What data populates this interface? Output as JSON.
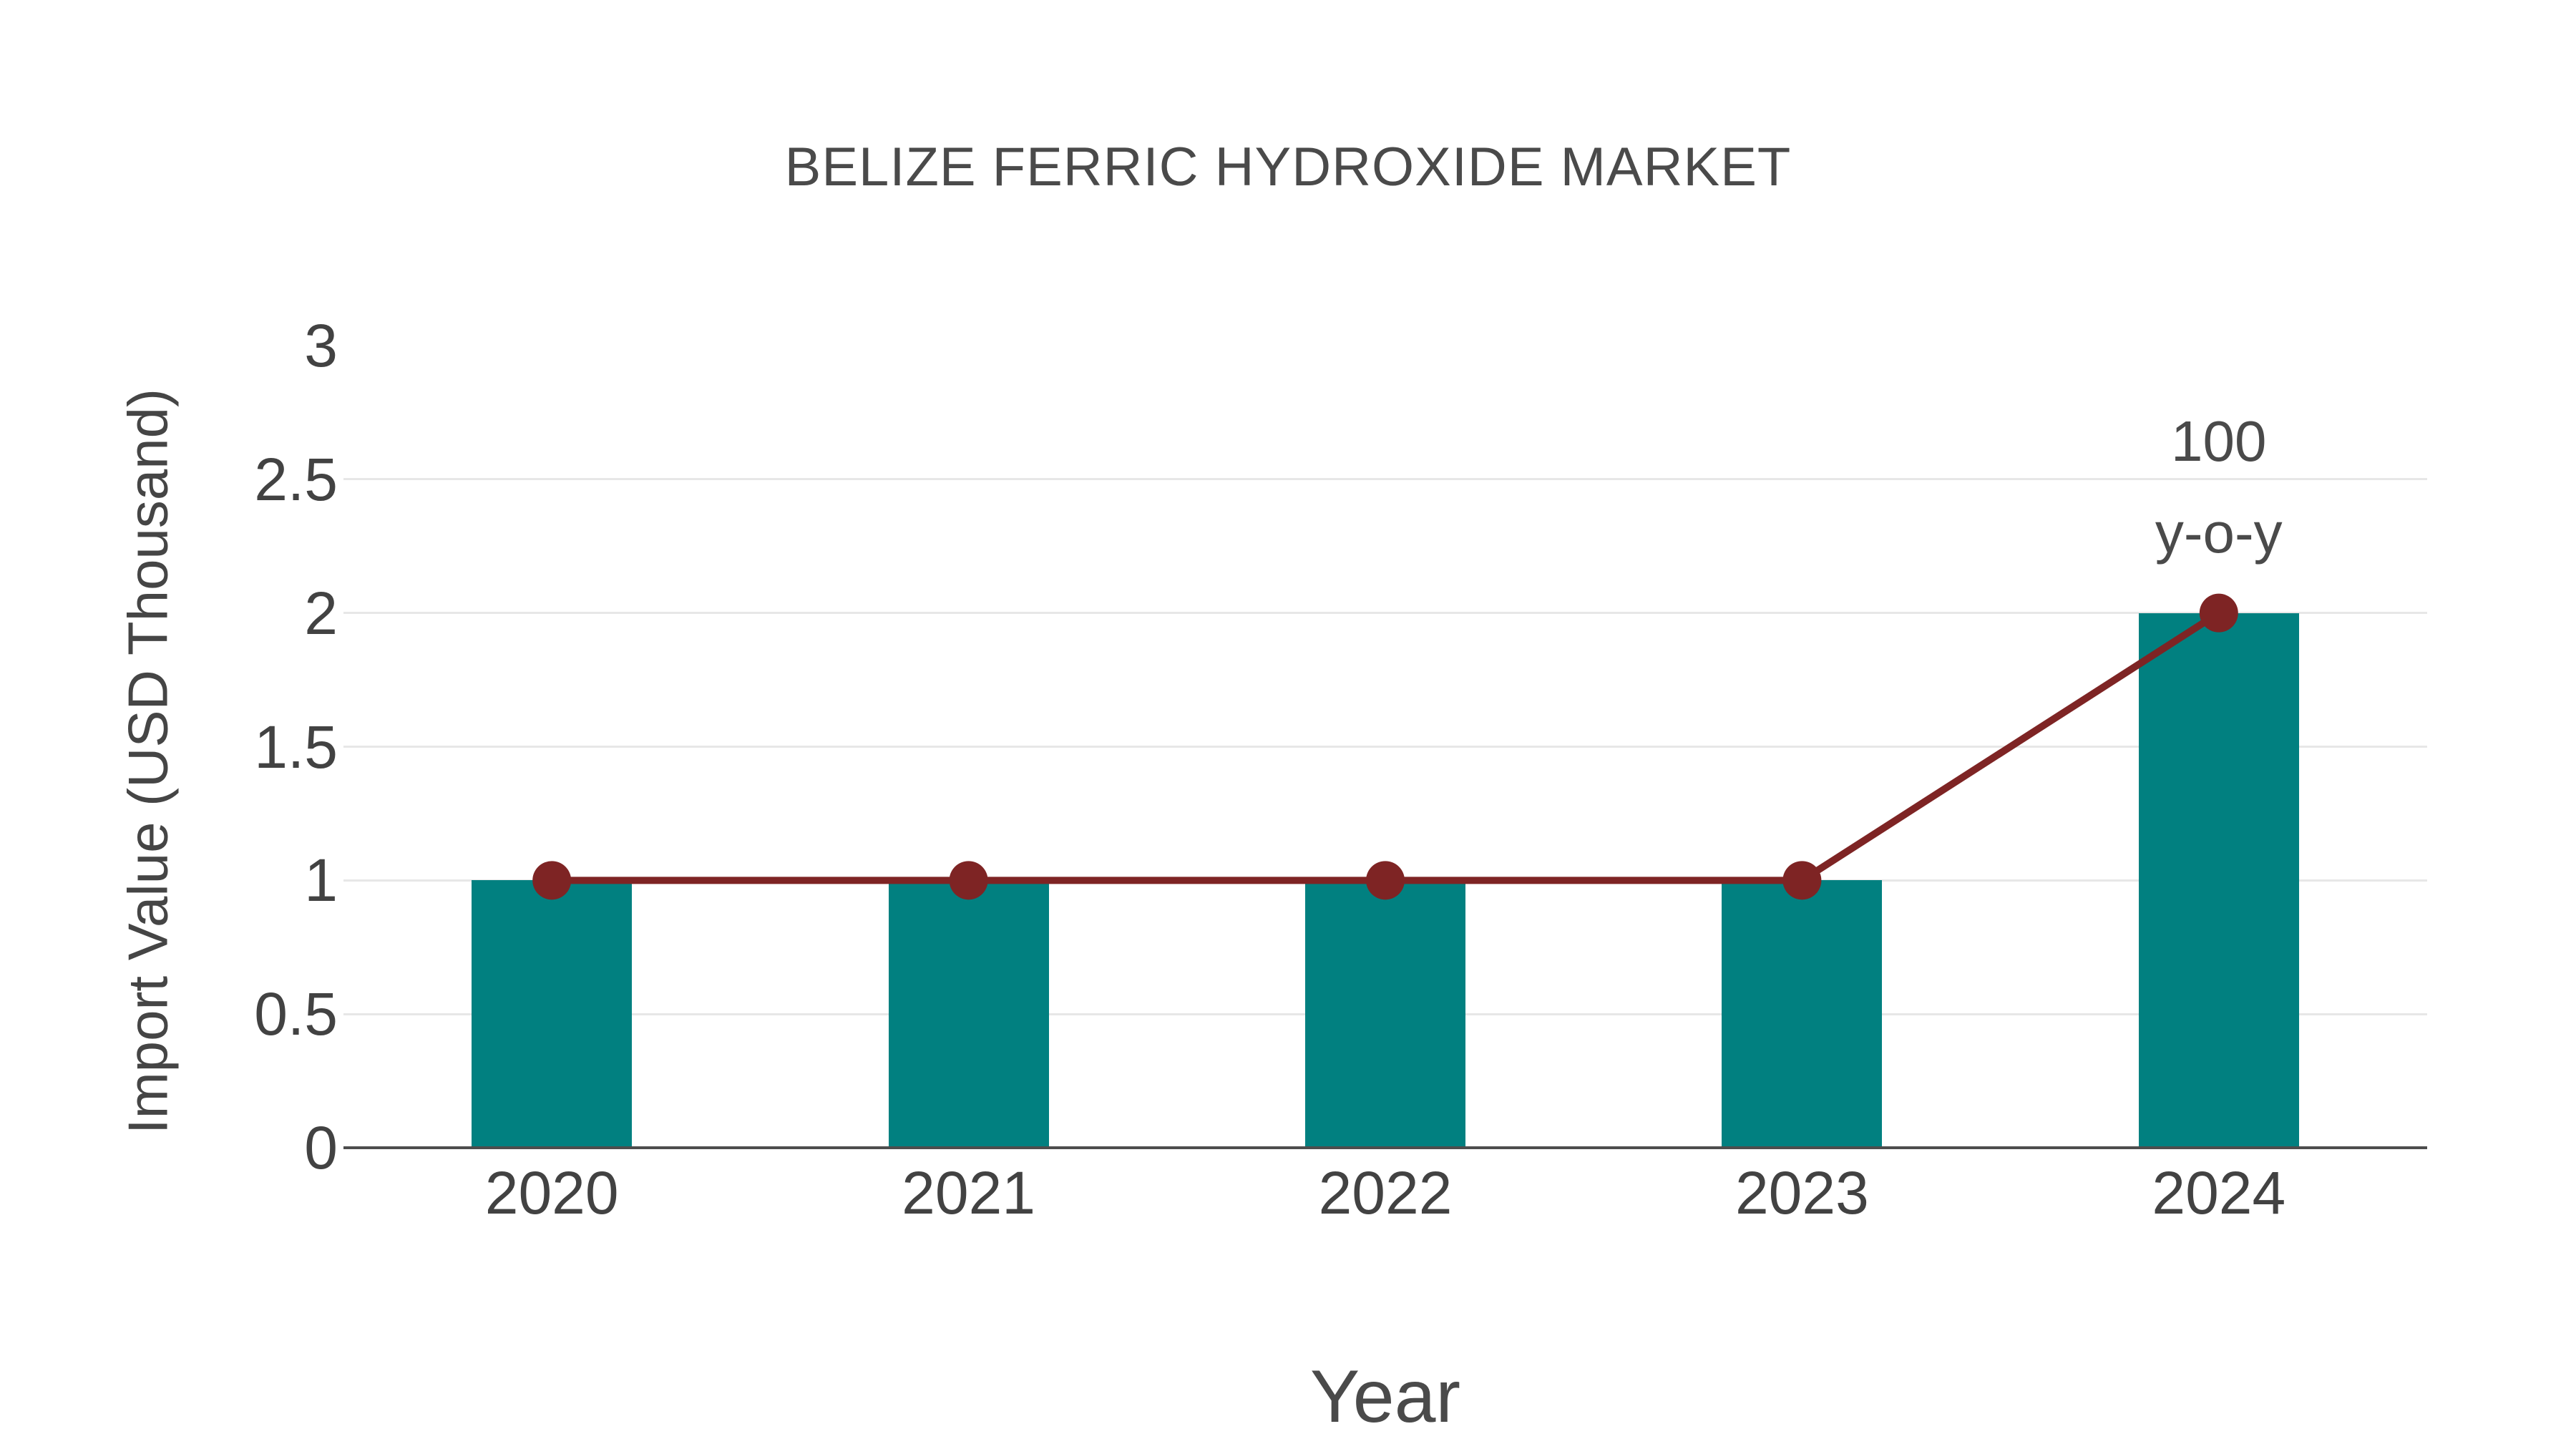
{
  "chart_data": {
    "type": "bar",
    "title": "BELIZE FERRIC HYDROXIDE MARKET",
    "xlabel": "Year",
    "ylabel": "Import Value (USD Thousand)",
    "categories": [
      "2020",
      "2021",
      "2022",
      "2023",
      "2024"
    ],
    "series": [
      {
        "type": "bar",
        "values": [
          1,
          1,
          1,
          1,
          2
        ],
        "color": "#018080"
      },
      {
        "type": "line",
        "values": [
          1,
          1,
          1,
          1,
          2
        ],
        "color": "#7e2424"
      }
    ],
    "ylim": [
      0,
      3
    ],
    "yticks": [
      0,
      0.5,
      1,
      1.5,
      2,
      2.5,
      3
    ],
    "ytick_labels": [
      "0",
      "0.5",
      "1",
      "1.5",
      "2",
      "2.5",
      "3"
    ],
    "grid": "horizontal-only",
    "legend": "none",
    "annotation": {
      "target_category": "2024",
      "lines": [
        "100",
        "y-o-y"
      ]
    }
  },
  "colors": {
    "bar": "#018080",
    "line": "#7e2424",
    "grid": "#e7e7e7",
    "axis": "#4d4d4d",
    "background": "#ffffff"
  }
}
